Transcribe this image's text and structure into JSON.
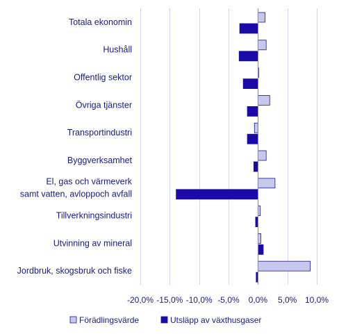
{
  "chart_data": {
    "type": "bar",
    "orientation": "horizontal",
    "categories": [
      [
        "Totala ekonomin"
      ],
      [
        "Hushåll"
      ],
      [
        "Offentlig sektor"
      ],
      [
        "Övriga tjänster"
      ],
      [
        "Transportindustri"
      ],
      [
        "Byggverksamhet"
      ],
      [
        "El, gas och värmeverk",
        "samt vatten, avloppoch avfall"
      ],
      [
        "Tillverkningsindustri"
      ],
      [
        "Utvinning av mineral"
      ],
      [
        "Jordbruk, skogsbruk och fiske"
      ]
    ],
    "series": [
      {
        "name": "Förädlingsvärde",
        "color": "#c8c8ee",
        "stroke": "#1a1a8c",
        "values": [
          1.2,
          1.4,
          0.1,
          2.0,
          -0.6,
          1.4,
          2.9,
          0.4,
          0.5,
          8.9
        ]
      },
      {
        "name": "Utsläpp av växthusgaser",
        "color": "#1a0aa8",
        "stroke": "#1a0aa8",
        "values": [
          -3.1,
          -3.2,
          -2.5,
          -1.8,
          -1.8,
          -0.7,
          -13.9,
          -0.4,
          0.9,
          -0.3
        ]
      }
    ],
    "xlim": [
      -20,
      10
    ],
    "ticks": [
      -20,
      -15,
      -10,
      -5,
      0,
      5,
      10
    ],
    "tick_labels": [
      "-20,0%",
      "-15,0%",
      "-10,0%",
      "-5,0%",
      "0,0%",
      "5,0%",
      "10,0%"
    ],
    "grid": "vertical",
    "legend_position": "bottom"
  }
}
